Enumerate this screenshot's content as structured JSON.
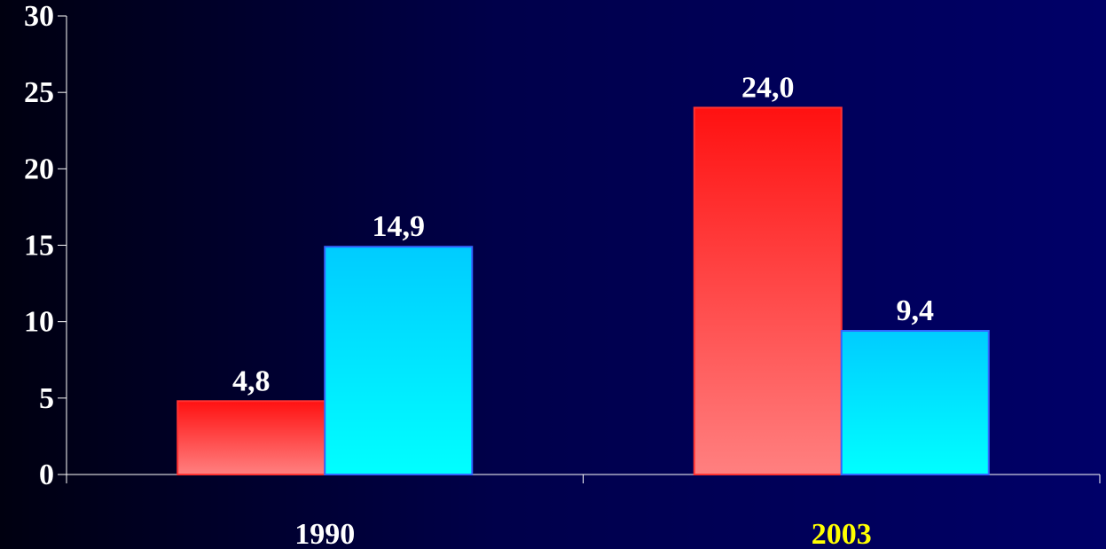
{
  "chart_data": {
    "type": "bar",
    "categories": [
      "1990",
      "2003"
    ],
    "series": [
      {
        "values": [
          4.8,
          24.0
        ],
        "labels": [
          "4,8",
          "24,0"
        ]
      },
      {
        "values": [
          14.9,
          9.4
        ],
        "labels": [
          "14,9",
          "9,4"
        ]
      }
    ],
    "ylim": [
      0,
      30
    ],
    "yticks": [
      0,
      5,
      10,
      15,
      20,
      25,
      30
    ],
    "grid": false,
    "legend": "none"
  },
  "colors": {
    "series_red_top": "#ff1111",
    "series_red_bottom": "#ff8080",
    "series_cyan_top": "#00ccff",
    "series_cyan_bottom": "#00ffff",
    "axis": "#ffffff",
    "tick_text": "#ffffff",
    "category_text": [
      "#ffffff",
      "#ffff00"
    ]
  }
}
